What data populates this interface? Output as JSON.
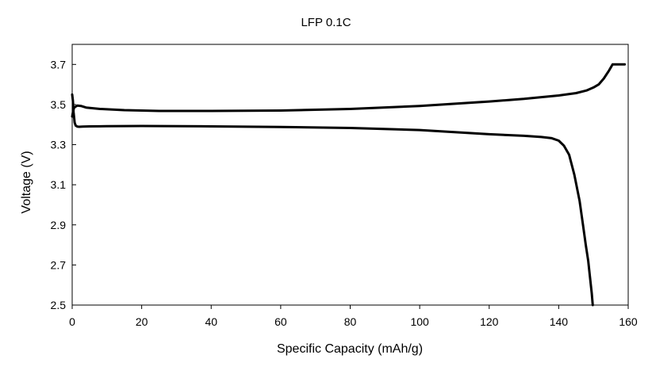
{
  "chart_data": {
    "type": "line",
    "title": "LFP  0.1C",
    "xlabel": "Specific  Capacity  (mAh/g)",
    "ylabel": "Voltage  (V)",
    "xlim": [
      0,
      160
    ],
    "ylim": [
      2.5,
      3.8
    ],
    "xticks": [
      0,
      20,
      40,
      60,
      80,
      100,
      120,
      140,
      160
    ],
    "xtick_labels": [
      "0",
      "20",
      "40",
      "60",
      "80",
      "100",
      "120",
      "140",
      "160"
    ],
    "yticks": [
      2.5,
      2.7,
      2.9,
      3.1,
      3.3,
      3.5,
      3.7
    ],
    "ytick_labels": [
      "2.5",
      "2.7",
      "2.9",
      "3.1",
      "3.3",
      "3.5",
      "3.7"
    ],
    "grid": false,
    "legend": "none",
    "line_color": "#000000",
    "series": [
      {
        "x": [
          0,
          0.3,
          0.6,
          1,
          1.5,
          2.5,
          4,
          8,
          15,
          25,
          40,
          60,
          80,
          100,
          120,
          130,
          140,
          145,
          148,
          150,
          151.5,
          153,
          154.5,
          155.5,
          157,
          159
        ],
        "y": [
          3.44,
          3.47,
          3.485,
          3.49,
          3.495,
          3.493,
          3.485,
          3.478,
          3.472,
          3.468,
          3.468,
          3.47,
          3.478,
          3.493,
          3.515,
          3.528,
          3.545,
          3.557,
          3.57,
          3.585,
          3.6,
          3.63,
          3.67,
          3.7,
          3.7,
          3.7
        ]
      },
      {
        "x": [
          0,
          0.2,
          0.4,
          0.7,
          1,
          1.5,
          2,
          3,
          5,
          10,
          20,
          40,
          60,
          80,
          100,
          110,
          120,
          130,
          135,
          138,
          140,
          141.5,
          143,
          144.5,
          146,
          147,
          147.8,
          148.5,
          149,
          149.5,
          149.8
        ],
        "y": [
          3.55,
          3.52,
          3.46,
          3.41,
          3.395,
          3.39,
          3.389,
          3.39,
          3.391,
          3.392,
          3.393,
          3.391,
          3.388,
          3.383,
          3.373,
          3.362,
          3.352,
          3.344,
          3.338,
          3.332,
          3.32,
          3.295,
          3.25,
          3.15,
          3.02,
          2.9,
          2.8,
          2.72,
          2.64,
          2.56,
          2.5
        ]
      }
    ]
  }
}
